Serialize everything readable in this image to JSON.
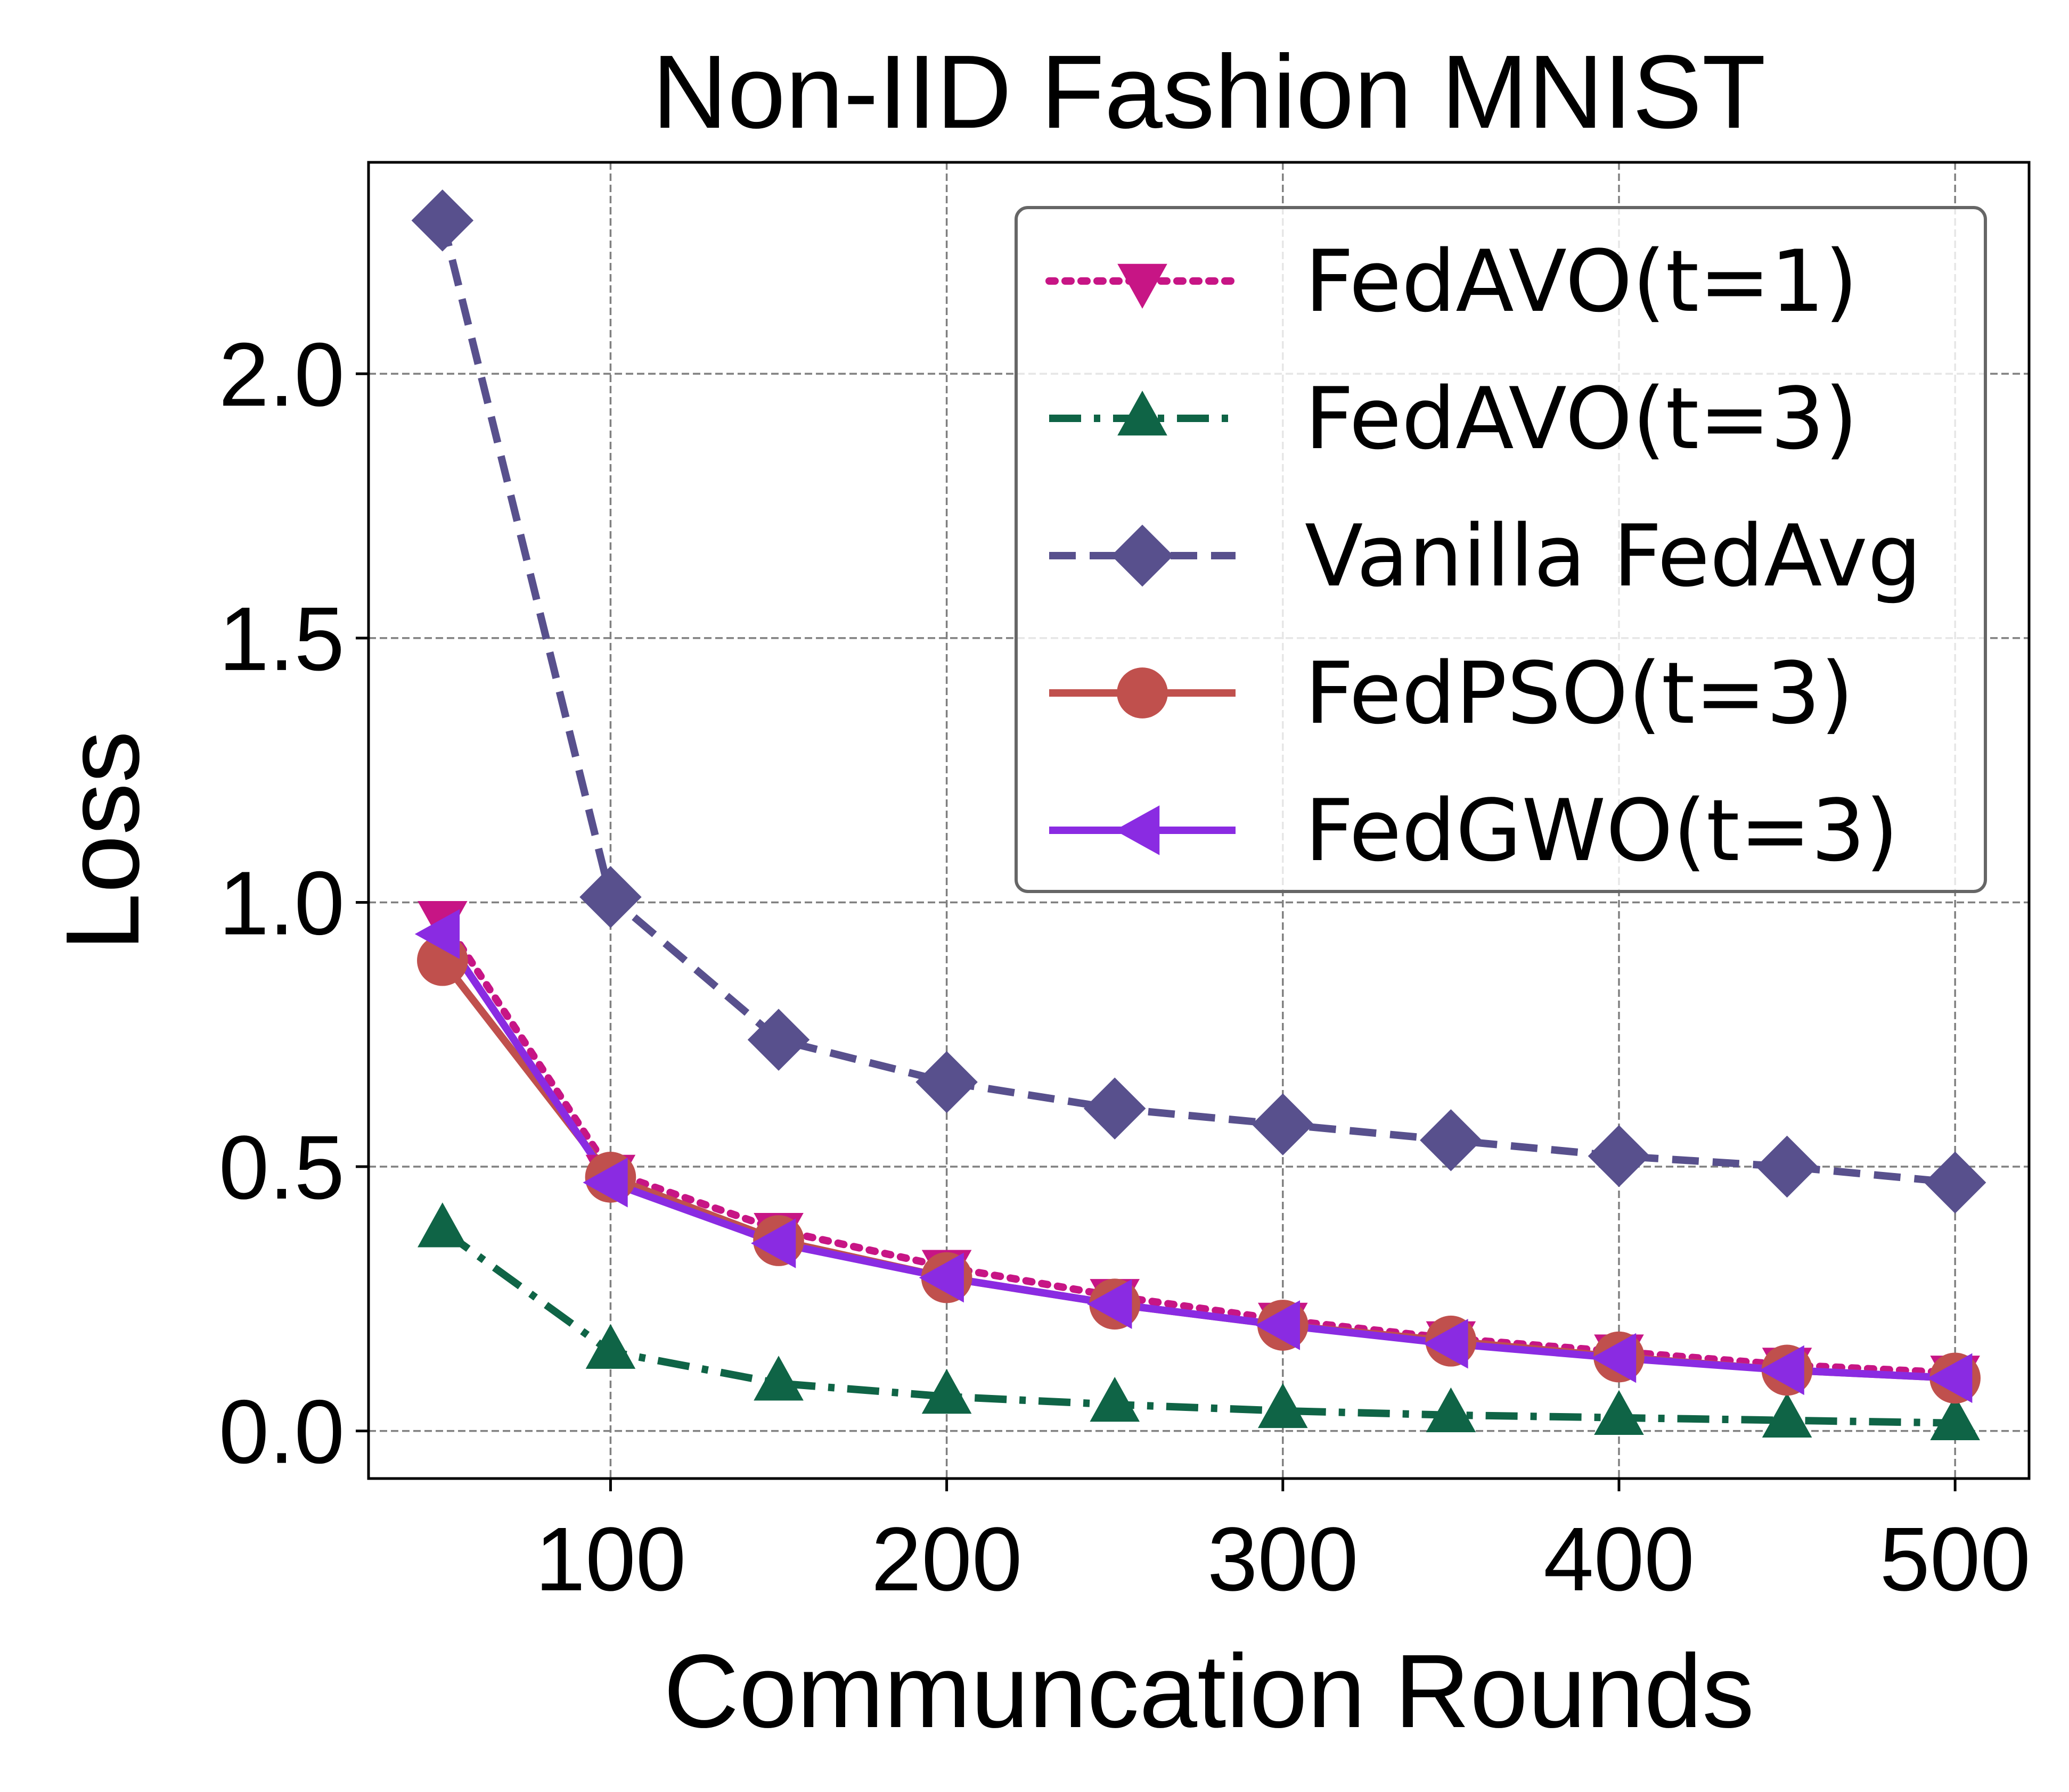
{
  "chart_data": {
    "type": "line",
    "title": "Non-IID Fashion MNIST",
    "xlabel": "Communcation Rounds",
    "ylabel": "Loss",
    "xlim": [
      28,
      522
    ],
    "ylim": [
      -0.09,
      2.4
    ],
    "xticks": [
      100,
      200,
      300,
      400,
      500
    ],
    "xtick_labels": [
      "100",
      "200",
      "300",
      "400",
      "500"
    ],
    "yticks": [
      0.0,
      0.5,
      1.0,
      1.5,
      2.0
    ],
    "ytick_labels": [
      "0.0",
      "0.5",
      "1.0",
      "1.5",
      "2.0"
    ],
    "grid": true,
    "legend_position": "top-right",
    "x": [
      50,
      100,
      150,
      200,
      250,
      300,
      350,
      400,
      450,
      500
    ],
    "series": [
      {
        "name": "FedAVO(t=1)",
        "color": "#c71585",
        "marker": "triangle-down",
        "linestyle": "dotted",
        "values": [
          0.97,
          0.49,
          0.38,
          0.31,
          0.255,
          0.21,
          0.175,
          0.15,
          0.125,
          0.11
        ]
      },
      {
        "name": "FedAVO(t=3)",
        "color": "#0f6446",
        "marker": "triangle-up",
        "linestyle": "dashdot",
        "values": [
          0.38,
          0.15,
          0.09,
          0.065,
          0.05,
          0.038,
          0.03,
          0.025,
          0.02,
          0.015
        ]
      },
      {
        "name": "Vanilla FedAvg",
        "color": "#58508d",
        "marker": "diamond",
        "linestyle": "dashed",
        "values": [
          2.29,
          1.01,
          0.74,
          0.66,
          0.61,
          0.58,
          0.55,
          0.52,
          0.5,
          0.47
        ]
      },
      {
        "name": "FedPSO(t=3)",
        "color": "#c0504d",
        "marker": "circle",
        "linestyle": "solid",
        "values": [
          0.89,
          0.48,
          0.36,
          0.29,
          0.24,
          0.2,
          0.17,
          0.14,
          0.115,
          0.1
        ]
      },
      {
        "name": "FedGWO(t=3)",
        "color": "#8a2be2",
        "marker": "triangle-left",
        "linestyle": "solid",
        "values": [
          0.94,
          0.47,
          0.355,
          0.29,
          0.24,
          0.2,
          0.165,
          0.138,
          0.115,
          0.1
        ]
      }
    ]
  }
}
